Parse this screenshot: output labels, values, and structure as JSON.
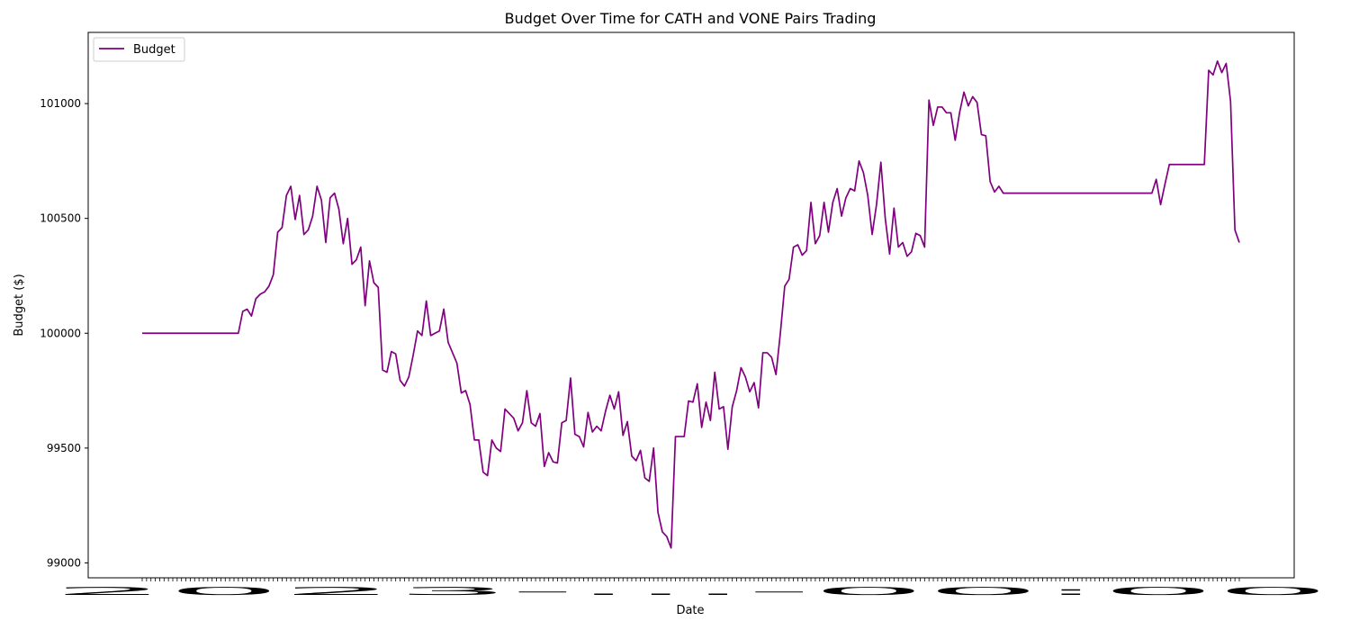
{
  "chart_data": {
    "type": "line",
    "title": "Budget Over Time for CATH and VONE Pairs Trading",
    "xlabel": "Date",
    "ylabel": "Budget ($)",
    "ylim": [
      98935,
      101310
    ],
    "yticks": [
      99000,
      99500,
      100000,
      100500,
      101000
    ],
    "x_tick_label_overplotted": "2023-...-00:00",
    "grid": false,
    "legend_position": "top-left",
    "colors": {
      "series": "#800080",
      "axes": "#000000",
      "background": "#ffffff"
    },
    "series": [
      {
        "name": "Budget",
        "values": [
          100000,
          100000,
          100000,
          100000,
          100000,
          100000,
          100000,
          100000,
          100000,
          100000,
          100000,
          100000,
          100000,
          100000,
          100000,
          100000,
          100000,
          100000,
          100000,
          100000,
          100000,
          100000,
          100000,
          100095,
          100105,
          100075,
          100150,
          100170,
          100180,
          100205,
          100255,
          100440,
          100460,
          100600,
          100640,
          100495,
          100600,
          100430,
          100450,
          100510,
          100640,
          100580,
          100395,
          100590,
          100610,
          100540,
          100390,
          100500,
          100300,
          100320,
          100375,
          100120,
          100315,
          100220,
          100200,
          99840,
          99830,
          99920,
          99910,
          99795,
          99770,
          99810,
          99905,
          100010,
          99990,
          100140,
          99990,
          100000,
          100010,
          100105,
          99960,
          99915,
          99870,
          99740,
          99750,
          99690,
          99535,
          99535,
          99395,
          99380,
          99535,
          99500,
          99485,
          99670,
          99650,
          99630,
          99575,
          99610,
          99750,
          99610,
          99595,
          99650,
          99420,
          99480,
          99440,
          99435,
          99610,
          99620,
          99805,
          99560,
          99550,
          99505,
          99655,
          99570,
          99595,
          99575,
          99660,
          99730,
          99670,
          99745,
          99555,
          99615,
          99465,
          99445,
          99490,
          99370,
          99355,
          99500,
          99220,
          99135,
          99115,
          99065,
          99550,
          99550,
          99550,
          99705,
          99700,
          99780,
          99590,
          99700,
          99620,
          99830,
          99670,
          99680,
          99495,
          99680,
          99750,
          99850,
          99810,
          99745,
          99785,
          99675,
          99915,
          99915,
          99895,
          99820,
          100000,
          100205,
          100235,
          100375,
          100385,
          100340,
          100360,
          100570,
          100390,
          100425,
          100570,
          100440,
          100570,
          100630,
          100510,
          100590,
          100630,
          100620,
          100750,
          100700,
          100600,
          100430,
          100560,
          100745,
          100500,
          100345,
          100545,
          100375,
          100395,
          100335,
          100355,
          100435,
          100425,
          100375,
          101015,
          100905,
          100985,
          100985,
          100960,
          100960,
          100840,
          100960,
          101050,
          100990,
          101030,
          101005,
          100865,
          100860,
          100660,
          100615,
          100640,
          100610,
          100610,
          100610,
          100610,
          100610,
          100610,
          100610,
          100610,
          100610,
          100610,
          100610,
          100610,
          100610,
          100610,
          100610,
          100610,
          100610,
          100610,
          100610,
          100610,
          100610,
          100610,
          100610,
          100610,
          100610,
          100610,
          100610,
          100610,
          100610,
          100610,
          100610,
          100610,
          100610,
          100610,
          100610,
          100670,
          100560,
          100650,
          100735,
          100735,
          100735,
          100735,
          100735,
          100735,
          100735,
          100735,
          100735,
          101145,
          101125,
          101185,
          101135,
          101175,
          101010,
          100450,
          100395
        ]
      }
    ]
  }
}
